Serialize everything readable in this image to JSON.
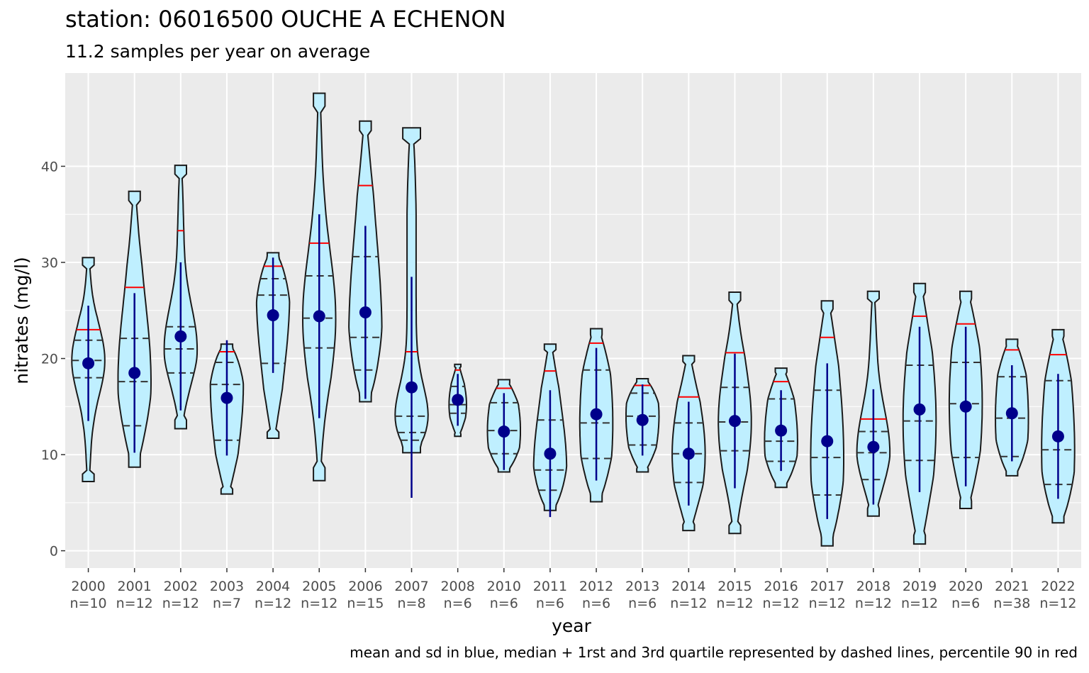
{
  "title": "station: 06016500 OUCHE A ECHENON",
  "subtitle": "11.2 samples per year on average",
  "caption": "mean and sd in blue, median + 1rst and 3rd quartile represented by dashed lines,  percentile 90 in red",
  "colors": {
    "panel": "#ebebeb",
    "grid": "#ffffff",
    "violin_fill": "#bfefff",
    "violin_outline": "#1a1a1a",
    "mean": "#00008b",
    "p90": "#ff0000"
  },
  "chart_data": {
    "type": "violin",
    "title": "station: 06016500 OUCHE A ECHENON",
    "subtitle": "11.2 samples per year on average",
    "xlabel": "year",
    "ylabel": "nitrates (mg/l)",
    "ylim": [
      -1.8,
      49.7
    ],
    "yticks": [
      0,
      10,
      20,
      30,
      40
    ],
    "grid": true,
    "categories": [
      {
        "year": "2000",
        "n": "n=10",
        "min": 7.2,
        "max": 30.5,
        "q1": 18.0,
        "median": 19.8,
        "q3": 21.9,
        "p90": 23.0,
        "mean": 19.5,
        "sd": 6.0,
        "width": 0.85
      },
      {
        "year": "2001",
        "n": "n=12",
        "min": 8.7,
        "max": 37.4,
        "q1": 13.0,
        "median": 17.6,
        "q3": 22.1,
        "p90": 27.4,
        "mean": 18.5,
        "sd": 8.3,
        "width": 0.85
      },
      {
        "year": "2002",
        "n": "n=12",
        "min": 12.7,
        "max": 40.1,
        "q1": 18.5,
        "median": 21.0,
        "q3": 23.3,
        "p90": 33.3,
        "mean": 22.3,
        "sd": 7.7,
        "width": 0.85
      },
      {
        "year": "2003",
        "n": "n=7",
        "min": 5.9,
        "max": 21.5,
        "q1": 11.5,
        "median": 17.3,
        "q3": 19.6,
        "p90": 20.7,
        "mean": 15.9,
        "sd": 6.0,
        "width": 0.85
      },
      {
        "year": "2004",
        "n": "n=12",
        "min": 11.7,
        "max": 31.0,
        "q1": 19.5,
        "median": 26.6,
        "q3": 28.3,
        "p90": 29.6,
        "mean": 24.5,
        "sd": 6.0,
        "width": 0.85
      },
      {
        "year": "2005",
        "n": "n=12",
        "min": 7.3,
        "max": 47.6,
        "q1": 21.1,
        "median": 24.2,
        "q3": 28.6,
        "p90": 32.0,
        "mean": 24.4,
        "sd": 10.6,
        "width": 0.85
      },
      {
        "year": "2006",
        "n": "n=15",
        "min": 15.5,
        "max": 44.7,
        "q1": 18.8,
        "median": 22.2,
        "q3": 30.6,
        "p90": 38.0,
        "mean": 24.8,
        "sd": 9.0,
        "width": 0.85
      },
      {
        "year": "2007",
        "n": "n=8",
        "min": 10.2,
        "max": 44.0,
        "q1": 11.5,
        "median": 12.3,
        "q3": 14.0,
        "p90": 20.7,
        "mean": 17.0,
        "sd": 11.5,
        "width": 0.85
      },
      {
        "year": "2008",
        "n": "n=6",
        "min": 11.9,
        "max": 19.4,
        "q1": 14.3,
        "median": 15.2,
        "q3": 17.1,
        "p90": 18.8,
        "mean": 15.7,
        "sd": 2.7,
        "width": 0.45
      },
      {
        "year": "2010",
        "n": "n=6",
        "min": 8.2,
        "max": 17.8,
        "q1": 10.1,
        "median": 12.5,
        "q3": 15.4,
        "p90": 16.9,
        "mean": 12.4,
        "sd": 4.0,
        "width": 0.85
      },
      {
        "year": "2011",
        "n": "n=6",
        "min": 4.2,
        "max": 21.5,
        "q1": 6.3,
        "median": 8.4,
        "q3": 13.6,
        "p90": 18.7,
        "mean": 10.1,
        "sd": 6.6,
        "width": 0.85
      },
      {
        "year": "2012",
        "n": "n=6",
        "min": 5.1,
        "max": 23.1,
        "q1": 9.6,
        "median": 13.3,
        "q3": 18.8,
        "p90": 21.6,
        "mean": 14.2,
        "sd": 6.9,
        "width": 0.85
      },
      {
        "year": "2013",
        "n": "n=6",
        "min": 8.2,
        "max": 17.9,
        "q1": 11.0,
        "median": 14.0,
        "q3": 16.4,
        "p90": 17.2,
        "mean": 13.6,
        "sd": 3.7,
        "width": 0.85
      },
      {
        "year": "2014",
        "n": "n=12",
        "min": 2.1,
        "max": 20.3,
        "q1": 7.1,
        "median": 10.1,
        "q3": 13.3,
        "p90": 16.0,
        "mean": 10.1,
        "sd": 5.4,
        "width": 0.85
      },
      {
        "year": "2015",
        "n": "n=12",
        "min": 1.8,
        "max": 26.9,
        "q1": 10.4,
        "median": 13.4,
        "q3": 17.0,
        "p90": 20.6,
        "mean": 13.5,
        "sd": 7.0,
        "width": 0.85
      },
      {
        "year": "2016",
        "n": "n=12",
        "min": 6.6,
        "max": 19.0,
        "q1": 9.3,
        "median": 11.4,
        "q3": 15.8,
        "p90": 17.6,
        "mean": 12.5,
        "sd": 4.2,
        "width": 0.85
      },
      {
        "year": "2017",
        "n": "n=12",
        "min": 0.5,
        "max": 26.0,
        "q1": 5.8,
        "median": 9.7,
        "q3": 16.7,
        "p90": 22.2,
        "mean": 11.4,
        "sd": 8.1,
        "width": 0.85
      },
      {
        "year": "2018",
        "n": "n=12",
        "min": 3.6,
        "max": 27.0,
        "q1": 7.4,
        "median": 10.2,
        "q3": 12.4,
        "p90": 13.7,
        "mean": 10.8,
        "sd": 6.0,
        "width": 0.85
      },
      {
        "year": "2019",
        "n": "n=12",
        "min": 0.7,
        "max": 27.8,
        "q1": 9.4,
        "median": 13.5,
        "q3": 19.3,
        "p90": 24.4,
        "mean": 14.7,
        "sd": 8.6,
        "width": 0.85
      },
      {
        "year": "2020",
        "n": "n=6",
        "min": 4.4,
        "max": 27.0,
        "q1": 9.7,
        "median": 15.3,
        "q3": 19.6,
        "p90": 23.6,
        "mean": 15.0,
        "sd": 8.3,
        "width": 0.85
      },
      {
        "year": "2021",
        "n": "n=38",
        "min": 7.8,
        "max": 22.0,
        "q1": 9.8,
        "median": 13.8,
        "q3": 18.1,
        "p90": 20.9,
        "mean": 14.3,
        "sd": 5.0,
        "width": 0.85
      },
      {
        "year": "2022",
        "n": "n=12",
        "min": 2.9,
        "max": 23.0,
        "q1": 6.9,
        "median": 10.5,
        "q3": 17.7,
        "p90": 20.4,
        "mean": 11.9,
        "sd": 6.5,
        "width": 0.85
      }
    ]
  }
}
